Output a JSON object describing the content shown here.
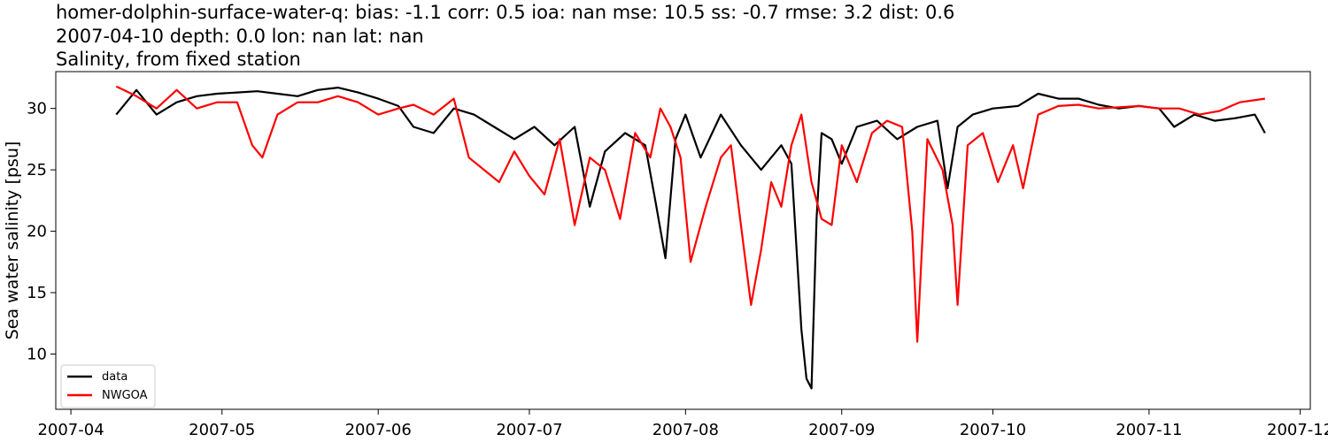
{
  "chart_data": {
    "type": "line",
    "title_lines": [
      "homer-dolphin-surface-water-q: bias: -1.1  corr: 0.5  ioa: nan  mse: 10.5  ss: -0.7  rmse: 3.2  dist: 0.6",
      "2007-04-10 depth: 0.0 lon: nan lat: nan",
      "Salinity, from fixed station"
    ],
    "xlabel": "",
    "ylabel": "Sea water salinity [psu]",
    "x_ticks": [
      "2007-04",
      "2007-05",
      "2007-06",
      "2007-07",
      "2007-08",
      "2007-09",
      "2007-10",
      "2007-11",
      "2007-12"
    ],
    "y_ticks": [
      10,
      15,
      20,
      25,
      30
    ],
    "xlim": [
      "2007-03-29",
      "2007-12-03"
    ],
    "ylim": [
      5.5,
      33.0
    ],
    "grid": false,
    "legend": {
      "position": "lower-left",
      "entries": [
        "data",
        "NWGOA"
      ]
    },
    "colors": {
      "data": "#000000",
      "NWGOA": "#ff0000"
    },
    "series": [
      {
        "name": "data",
        "x": [
          "2007-04-10",
          "2007-04-14",
          "2007-04-18",
          "2007-04-22",
          "2007-04-26",
          "2007-04-30",
          "2007-05-04",
          "2007-05-08",
          "2007-05-12",
          "2007-05-16",
          "2007-05-20",
          "2007-05-24",
          "2007-05-28",
          "2007-06-01",
          "2007-06-05",
          "2007-06-08",
          "2007-06-12",
          "2007-06-16",
          "2007-06-20",
          "2007-06-24",
          "2007-06-28",
          "2007-07-02",
          "2007-07-06",
          "2007-07-10",
          "2007-07-13",
          "2007-07-16",
          "2007-07-20",
          "2007-07-24",
          "2007-07-26",
          "2007-07-28",
          "2007-07-30",
          "2007-08-01",
          "2007-08-04",
          "2007-08-08",
          "2007-08-12",
          "2007-08-16",
          "2007-08-20",
          "2007-08-22",
          "2007-08-24",
          "2007-08-25",
          "2007-08-26",
          "2007-08-27",
          "2007-08-28",
          "2007-08-30",
          "2007-09-01",
          "2007-09-04",
          "2007-09-08",
          "2007-09-12",
          "2007-09-16",
          "2007-09-20",
          "2007-09-22",
          "2007-09-24",
          "2007-09-27",
          "2007-10-01",
          "2007-10-06",
          "2007-10-10",
          "2007-10-14",
          "2007-10-18",
          "2007-10-22",
          "2007-10-26",
          "2007-10-30",
          "2007-11-03",
          "2007-11-06",
          "2007-11-10",
          "2007-11-14",
          "2007-11-18",
          "2007-11-22",
          "2007-11-24"
        ],
        "values": [
          29.5,
          31.5,
          29.5,
          30.5,
          31.0,
          31.2,
          31.3,
          31.4,
          31.2,
          31.0,
          31.5,
          31.7,
          31.3,
          30.8,
          30.2,
          28.5,
          28.0,
          30.0,
          29.5,
          28.5,
          27.5,
          28.5,
          27.0,
          28.5,
          22.0,
          26.5,
          28.0,
          27.0,
          22.5,
          17.8,
          27.5,
          29.5,
          26.0,
          29.5,
          27.0,
          25.0,
          27.0,
          25.5,
          12.0,
          8.0,
          7.2,
          21.0,
          28.0,
          27.5,
          25.5,
          28.5,
          29.0,
          27.5,
          28.5,
          29.0,
          23.5,
          28.5,
          29.5,
          30.0,
          30.2,
          31.2,
          30.8,
          30.8,
          30.3,
          30.0,
          30.2,
          30.0,
          28.5,
          29.5,
          29.0,
          29.2,
          29.5,
          28.0
        ]
      },
      {
        "name": "NWGOA",
        "x": [
          "2007-04-10",
          "2007-04-14",
          "2007-04-18",
          "2007-04-22",
          "2007-04-26",
          "2007-04-30",
          "2007-05-04",
          "2007-05-07",
          "2007-05-09",
          "2007-05-12",
          "2007-05-16",
          "2007-05-20",
          "2007-05-24",
          "2007-05-28",
          "2007-06-01",
          "2007-06-05",
          "2007-06-08",
          "2007-06-12",
          "2007-06-16",
          "2007-06-19",
          "2007-06-22",
          "2007-06-25",
          "2007-06-28",
          "2007-07-01",
          "2007-07-04",
          "2007-07-07",
          "2007-07-10",
          "2007-07-13",
          "2007-07-16",
          "2007-07-19",
          "2007-07-22",
          "2007-07-25",
          "2007-07-27",
          "2007-07-29",
          "2007-07-31",
          "2007-08-02",
          "2007-08-05",
          "2007-08-08",
          "2007-08-10",
          "2007-08-12",
          "2007-08-14",
          "2007-08-16",
          "2007-08-18",
          "2007-08-20",
          "2007-08-22",
          "2007-08-24",
          "2007-08-26",
          "2007-08-28",
          "2007-08-30",
          "2007-09-01",
          "2007-09-04",
          "2007-09-07",
          "2007-09-10",
          "2007-09-13",
          "2007-09-15",
          "2007-09-16",
          "2007-09-18",
          "2007-09-21",
          "2007-09-23",
          "2007-09-24",
          "2007-09-26",
          "2007-09-29",
          "2007-10-02",
          "2007-10-05",
          "2007-10-07",
          "2007-10-10",
          "2007-10-14",
          "2007-10-18",
          "2007-10-22",
          "2007-10-26",
          "2007-10-30",
          "2007-11-03",
          "2007-11-07",
          "2007-11-11",
          "2007-11-15",
          "2007-11-19",
          "2007-11-24"
        ],
        "values": [
          31.8,
          31.0,
          30.0,
          31.5,
          30.0,
          30.5,
          30.5,
          27.0,
          26.0,
          29.5,
          30.5,
          30.5,
          31.0,
          30.5,
          29.5,
          30.0,
          30.3,
          29.5,
          30.8,
          26.0,
          25.0,
          24.0,
          26.5,
          24.5,
          23.0,
          27.5,
          20.5,
          26.0,
          25.0,
          21.0,
          28.0,
          26.0,
          30.0,
          28.5,
          26.0,
          17.5,
          22.0,
          26.0,
          27.0,
          20.5,
          14.0,
          18.5,
          24.0,
          22.0,
          27.0,
          29.5,
          24.0,
          21.0,
          20.5,
          27.0,
          24.0,
          28.0,
          29.0,
          28.5,
          20.0,
          11.0,
          27.5,
          25.0,
          20.5,
          14.0,
          27.0,
          28.0,
          24.0,
          27.0,
          23.5,
          29.5,
          30.2,
          30.3,
          30.0,
          30.1,
          30.2,
          30.0,
          30.0,
          29.5,
          29.8,
          30.5,
          30.8
        ]
      }
    ]
  }
}
